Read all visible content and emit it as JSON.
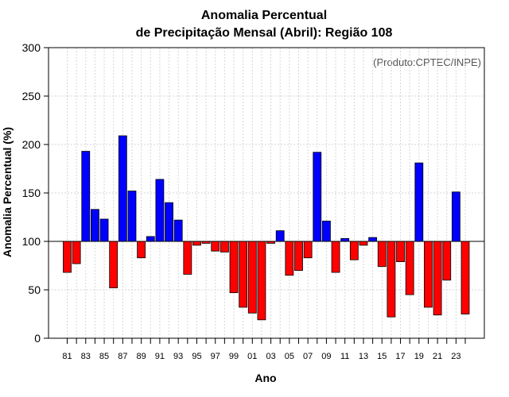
{
  "chart_data": {
    "type": "bar",
    "title": "Anomalia Percentual",
    "subtitle": "de Precipitação Mensal (Abril): Região 108",
    "xlabel": "Ano",
    "ylabel": "Anomalia Percentual (%)",
    "credit": "(Produto:CPTEC/INPE)",
    "ylim": [
      0,
      300
    ],
    "yticks": [
      0,
      50,
      100,
      150,
      200,
      250,
      300
    ],
    "baseline": 100,
    "grid": true,
    "colors": {
      "above": "#0000ff",
      "below": "#ff0000",
      "frame": "#000000"
    },
    "categories": [
      "1981",
      "1982",
      "1983",
      "1984",
      "1985",
      "1986",
      "1987",
      "1988",
      "1989",
      "1990",
      "1991",
      "1992",
      "1993",
      "1994",
      "1995",
      "1996",
      "1997",
      "1998",
      "1999",
      "2000",
      "2001",
      "2002",
      "2003",
      "2004",
      "2005",
      "2006",
      "2007",
      "2008",
      "2009",
      "2010",
      "2011",
      "2012",
      "2013",
      "2014",
      "2015",
      "2016",
      "2017",
      "2018",
      "2019",
      "2020",
      "2021",
      "2022",
      "2023",
      "2024"
    ],
    "values": [
      68,
      77,
      193,
      133,
      123,
      52,
      209,
      152,
      83,
      105,
      164,
      140,
      122,
      66,
      96,
      98,
      90,
      89,
      47,
      32,
      26,
      19,
      98,
      111,
      65,
      70,
      83,
      192,
      121,
      68,
      103,
      81,
      96,
      104,
      74,
      22,
      79,
      45,
      181,
      32,
      24,
      60,
      151,
      25
    ],
    "xtick_labels": [
      "81",
      "83",
      "85",
      "87",
      "89",
      "91",
      "93",
      "95",
      "97",
      "99",
      "01",
      "03",
      "05",
      "07",
      "09",
      "11",
      "13",
      "15",
      "17",
      "19",
      "21",
      "23"
    ]
  }
}
